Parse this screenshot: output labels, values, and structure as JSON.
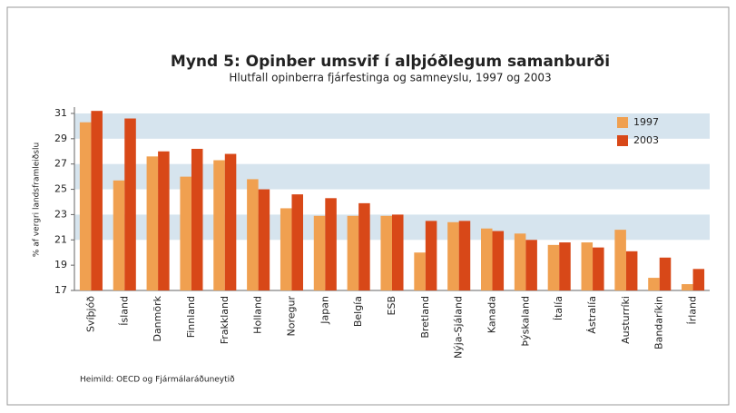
{
  "chart_data": {
    "type": "bar",
    "title": "Mynd 5: Opinber umsvif í alþjóðlegum samanburði",
    "subtitle": "Hlutfall opinberra fjárfestinga og samneyslu, 1997 og 2003",
    "y_label": "% af vergri landsframleiðslu",
    "source": "Heimild: OECD og Fjármálaráðuneytið",
    "categories": [
      "Svíþjóð",
      "Ísland",
      "Danmörk",
      "Finnland",
      "Frakkland",
      "Holland",
      "Noregur",
      "Japan",
      "Belgía",
      "ESB",
      "Bretland",
      "Nýja-Sjáland",
      "Kanada",
      "Þýskaland",
      "Ítalía",
      "Ástralía",
      "Austurríki",
      "Bandaríkin",
      "Írland"
    ],
    "series": [
      {
        "name": "1997",
        "color": "#f0a050",
        "values": [
          30.3,
          25.7,
          27.6,
          26.0,
          27.3,
          25.8,
          23.5,
          22.9,
          22.9,
          22.9,
          20.0,
          22.4,
          21.9,
          21.5,
          20.6,
          20.8,
          21.8,
          18.0,
          17.5
        ]
      },
      {
        "name": "2003",
        "color": "#d84818",
        "values": [
          31.2,
          30.6,
          28.0,
          28.2,
          27.8,
          25.0,
          24.6,
          24.3,
          23.9,
          23.0,
          22.5,
          22.5,
          21.7,
          21.0,
          20.8,
          20.4,
          20.1,
          19.6,
          18.7
        ]
      }
    ],
    "ylim": [
      17,
      31.5
    ],
    "yticks": [
      17,
      19,
      21,
      23,
      25,
      27,
      29,
      31
    ],
    "legend": "upper right"
  }
}
